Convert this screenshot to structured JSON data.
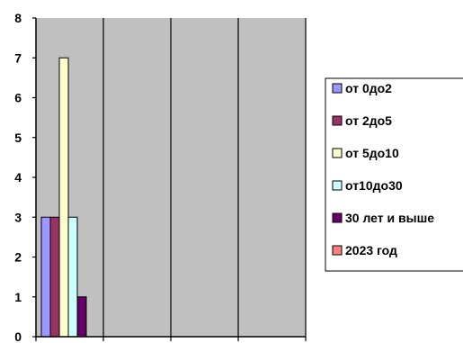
{
  "chart_data": {
    "type": "bar",
    "title": "",
    "xlabel": "",
    "ylabel": "",
    "ylim": [
      0,
      8
    ],
    "yticks": [
      0,
      1,
      2,
      3,
      4,
      5,
      6,
      7,
      8
    ],
    "categories": [
      "",
      "",
      "",
      ""
    ],
    "series": [
      {
        "name": "от 0до2",
        "color": "#9999ff",
        "values": [
          3,
          null,
          null,
          null
        ]
      },
      {
        "name": "от 2до5",
        "color": "#993366",
        "values": [
          3,
          null,
          null,
          null
        ]
      },
      {
        "name": "от 5до10",
        "color": "#ffffcc",
        "values": [
          7,
          null,
          null,
          null
        ]
      },
      {
        "name": "от10до30",
        "color": "#ccffff",
        "values": [
          3,
          null,
          null,
          null
        ]
      },
      {
        "name": "30 лет и выше",
        "color": "#660066",
        "values": [
          1,
          null,
          null,
          null
        ]
      },
      {
        "name": "2023 год",
        "color": "#ff8080",
        "values": [
          0,
          null,
          null,
          null
        ]
      }
    ],
    "plot_background": "#c0c0c0",
    "grid": "vertical",
    "legend_position": "right"
  }
}
